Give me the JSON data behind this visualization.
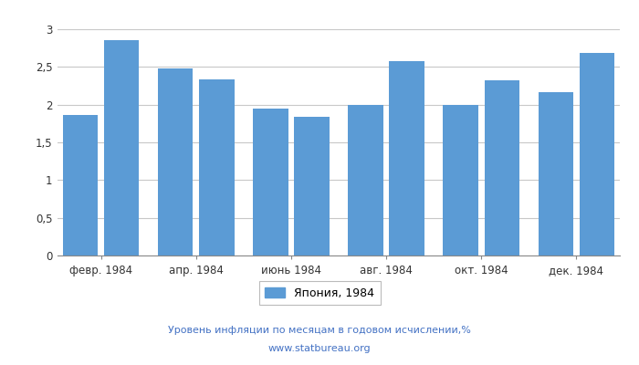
{
  "x_labels": [
    "февр. 1984",
    "апр. 1984",
    "июнь 1984",
    "авг. 1984",
    "окт. 1984",
    "дек. 1984"
  ],
  "bar_values": [
    1.86,
    2.86,
    2.48,
    2.33,
    1.95,
    1.84,
    1.99,
    2.58,
    1.99,
    2.32,
    2.17,
    2.68
  ],
  "bar_color": "#5b9bd5",
  "ylim": [
    0,
    3.0
  ],
  "yticks": [
    0,
    0.5,
    1.0,
    1.5,
    2.0,
    2.5,
    3.0
  ],
  "ytick_labels": [
    "0",
    "0,5",
    "1",
    "1,5",
    "2",
    "2,5",
    "3"
  ],
  "legend_label": "Япония, 1984",
  "footer_line1": "Уровень инфляции по месяцам в годовом исчислении,%",
  "footer_line2": "www.statbureau.org",
  "background_color": "#ffffff",
  "grid_color": "#c8c8c8"
}
